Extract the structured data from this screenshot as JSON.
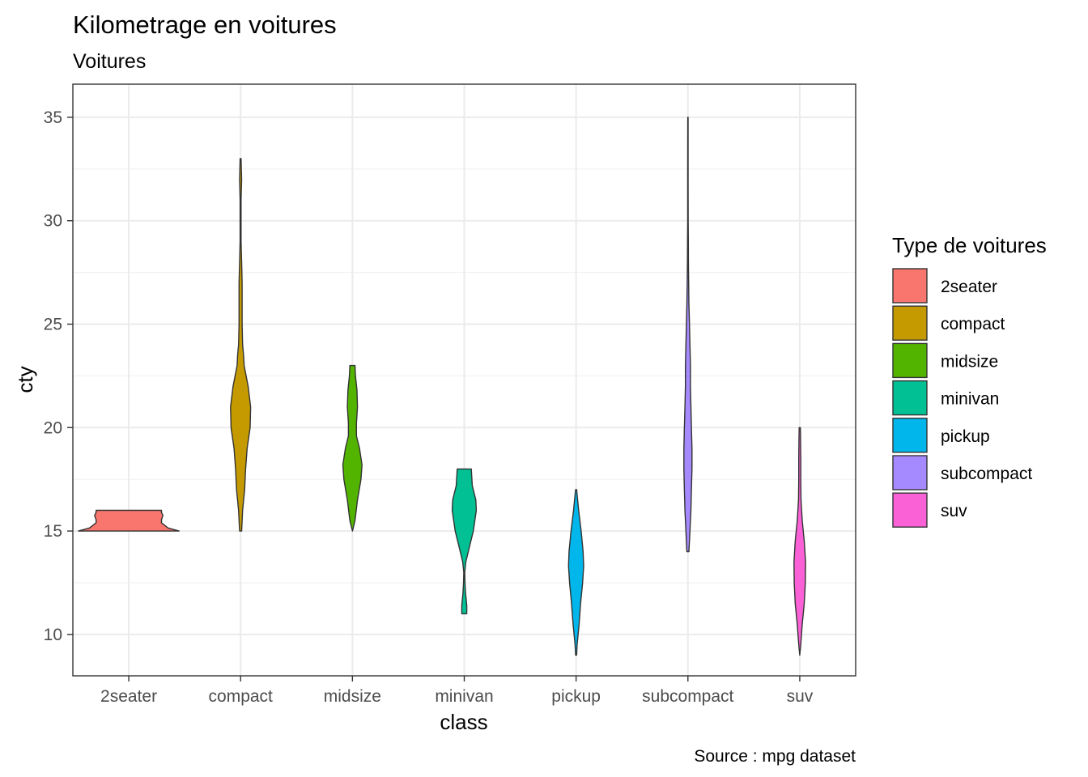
{
  "chart_data": {
    "type": "violin",
    "title": "Kilometrage en voitures",
    "subtitle": "Voitures",
    "xlabel": "class",
    "ylabel": "cty",
    "caption": "Source : mpg dataset",
    "ylim": [
      8,
      36.6
    ],
    "yticks": [
      10,
      15,
      20,
      25,
      30,
      35
    ],
    "grid": true,
    "legend": {
      "title": "Type de voitures",
      "position": "right"
    },
    "categories": [
      "2seater",
      "compact",
      "midsize",
      "minivan",
      "pickup",
      "subcompact",
      "suv"
    ],
    "series": [
      {
        "name": "2seater",
        "color": "#F8766D",
        "profile": [
          [
            15,
            1.0
          ],
          [
            15.15,
            0.78
          ],
          [
            15.4,
            0.65
          ],
          [
            15.55,
            0.65
          ],
          [
            15.75,
            0.68
          ],
          [
            15.9,
            0.65
          ],
          [
            16,
            0.65
          ]
        ]
      },
      {
        "name": "compact",
        "color": "#C49A00",
        "profile": [
          [
            15,
            0.02
          ],
          [
            16,
            0.04
          ],
          [
            17,
            0.08
          ],
          [
            18,
            0.1
          ],
          [
            19,
            0.13
          ],
          [
            20,
            0.19
          ],
          [
            21,
            0.2
          ],
          [
            22,
            0.15
          ],
          [
            23,
            0.07
          ],
          [
            23.5,
            0.06
          ],
          [
            24,
            0.04
          ],
          [
            25,
            0.03
          ],
          [
            26,
            0.03
          ],
          [
            27,
            0.03
          ],
          [
            28,
            0.02
          ],
          [
            29,
            0.01
          ],
          [
            30,
            0.01
          ],
          [
            31,
            0.01
          ],
          [
            32,
            0.02
          ],
          [
            33,
            0.01
          ]
        ]
      },
      {
        "name": "midsize",
        "color": "#53B400",
        "profile": [
          [
            15,
            0.0
          ],
          [
            15.5,
            0.05
          ],
          [
            16.5,
            0.1
          ],
          [
            17.5,
            0.17
          ],
          [
            18.2,
            0.19
          ],
          [
            19,
            0.14
          ],
          [
            19.6,
            0.08
          ],
          [
            20.2,
            0.08
          ],
          [
            21,
            0.1
          ],
          [
            21.8,
            0.09
          ],
          [
            22.5,
            0.06
          ],
          [
            23,
            0.05
          ]
        ]
      },
      {
        "name": "minivan",
        "color": "#00C094",
        "profile": [
          [
            11,
            0.05
          ],
          [
            11.4,
            0.05
          ],
          [
            12,
            0.025
          ],
          [
            12.5,
            0.015
          ],
          [
            13,
            0.01
          ],
          [
            13.5,
            0.03
          ],
          [
            14.2,
            0.1
          ],
          [
            15,
            0.18
          ],
          [
            16,
            0.24
          ],
          [
            16.5,
            0.23
          ],
          [
            17.2,
            0.16
          ],
          [
            18,
            0.14
          ]
        ]
      },
      {
        "name": "pickup",
        "color": "#00B6EB",
        "profile": [
          [
            9,
            0.01
          ],
          [
            9.5,
            0.02
          ],
          [
            10.5,
            0.06
          ],
          [
            11.5,
            0.09
          ],
          [
            12.5,
            0.13
          ],
          [
            13.3,
            0.15
          ],
          [
            14,
            0.14
          ],
          [
            15,
            0.1
          ],
          [
            16,
            0.05
          ],
          [
            17,
            0.01
          ]
        ]
      },
      {
        "name": "subcompact",
        "color": "#A58AFF",
        "profile": [
          [
            14,
            0.02
          ],
          [
            15,
            0.04
          ],
          [
            16,
            0.06
          ],
          [
            17,
            0.07
          ],
          [
            18,
            0.08
          ],
          [
            19,
            0.08
          ],
          [
            20,
            0.07
          ],
          [
            21,
            0.06
          ],
          [
            22,
            0.05
          ],
          [
            23,
            0.05
          ],
          [
            24,
            0.04
          ],
          [
            25,
            0.03
          ],
          [
            26,
            0.02
          ],
          [
            27,
            0.015
          ],
          [
            28,
            0.01
          ],
          [
            29,
            0.008
          ],
          [
            30,
            0.005
          ],
          [
            32,
            0.004
          ],
          [
            35,
            0.003
          ]
        ]
      },
      {
        "name": "suv",
        "color": "#FB61D7",
        "profile": [
          [
            9,
            0.0
          ],
          [
            9.5,
            0.02
          ],
          [
            10.5,
            0.05
          ],
          [
            11.5,
            0.09
          ],
          [
            12.5,
            0.11
          ],
          [
            13.5,
            0.115
          ],
          [
            14.5,
            0.09
          ],
          [
            15.5,
            0.05
          ],
          [
            16.5,
            0.025
          ],
          [
            17.5,
            0.02
          ],
          [
            18.5,
            0.02
          ],
          [
            19.5,
            0.015
          ],
          [
            20,
            0.012
          ]
        ]
      }
    ]
  }
}
